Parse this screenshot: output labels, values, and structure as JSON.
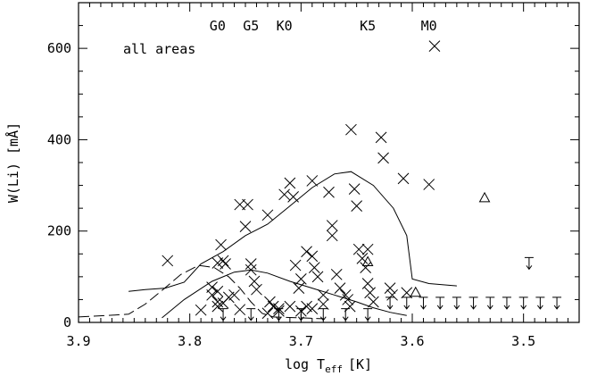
{
  "chart_data": {
    "type": "scatter",
    "title": "",
    "annotation": "all areas",
    "xlabel_main": "log T",
    "xlabel_sub": "eff",
    "xlabel_unit": "[K]",
    "ylabel": "W(Li) [mÅ]",
    "xlim": [
      3.9,
      3.45
    ],
    "ylim": [
      0,
      700
    ],
    "xticks": [
      3.9,
      3.8,
      3.7,
      3.6,
      3.5
    ],
    "xtick_labels": [
      "3.9",
      "3.8",
      "3.7",
      "3.6",
      "3.5"
    ],
    "yticks": [
      0,
      200,
      400,
      600
    ],
    "ytick_labels": [
      "0",
      "200",
      "400",
      "600"
    ],
    "spectral_types": [
      {
        "label": "G0",
        "x": 3.775
      },
      {
        "label": "G5",
        "x": 3.745
      },
      {
        "label": "K0",
        "x": 3.715
      },
      {
        "label": "K5",
        "x": 3.64
      },
      {
        "label": "M0",
        "x": 3.585
      }
    ],
    "detections": [
      [
        3.82,
        135
      ],
      [
        3.79,
        27
      ],
      [
        3.78,
        77
      ],
      [
        3.78,
        60
      ],
      [
        3.775,
        130
      ],
      [
        3.772,
        170
      ],
      [
        3.77,
        135
      ],
      [
        3.768,
        128
      ],
      [
        3.765,
        55
      ],
      [
        3.775,
        68
      ],
      [
        3.775,
        45
      ],
      [
        3.775,
        35
      ],
      [
        3.77,
        42
      ],
      [
        3.755,
        258
      ],
      [
        3.748,
        258
      ],
      [
        3.75,
        210
      ],
      [
        3.745,
        128
      ],
      [
        3.745,
        115
      ],
      [
        3.742,
        90
      ],
      [
        3.74,
        72
      ],
      [
        3.73,
        235
      ],
      [
        3.728,
        45
      ],
      [
        3.725,
        35
      ],
      [
        3.72,
        25
      ],
      [
        3.715,
        280
      ],
      [
        3.71,
        305
      ],
      [
        3.707,
        275
      ],
      [
        3.705,
        125
      ],
      [
        3.702,
        75
      ],
      [
        3.7,
        95
      ],
      [
        3.695,
        155
      ],
      [
        3.695,
        35
      ],
      [
        3.69,
        310
      ],
      [
        3.69,
        145
      ],
      [
        3.688,
        120
      ],
      [
        3.685,
        100
      ],
      [
        3.68,
        60
      ],
      [
        3.68,
        40
      ],
      [
        3.675,
        285
      ],
      [
        3.672,
        212
      ],
      [
        3.672,
        190
      ],
      [
        3.668,
        105
      ],
      [
        3.665,
        75
      ],
      [
        3.66,
        60
      ],
      [
        3.658,
        50
      ],
      [
        3.656,
        35
      ],
      [
        3.655,
        422
      ],
      [
        3.652,
        292
      ],
      [
        3.65,
        255
      ],
      [
        3.648,
        160
      ],
      [
        3.645,
        140
      ],
      [
        3.642,
        120
      ],
      [
        3.64,
        85
      ],
      [
        3.638,
        65
      ],
      [
        3.635,
        45
      ],
      [
        3.628,
        405
      ],
      [
        3.626,
        360
      ],
      [
        3.62,
        75
      ],
      [
        3.618,
        60
      ],
      [
        3.64,
        160
      ],
      [
        3.608,
        315
      ],
      [
        3.605,
        65
      ],
      [
        3.58,
        605
      ],
      [
        3.585,
        302
      ],
      [
        3.72,
        30
      ],
      [
        3.71,
        35
      ],
      [
        3.7,
        25
      ],
      [
        3.69,
        30
      ],
      [
        3.73,
        20
      ],
      [
        3.76,
        60
      ],
      [
        3.755,
        28
      ]
    ],
    "triangles": [
      [
        3.64,
        132
      ],
      [
        3.597,
        65
      ],
      [
        3.535,
        272
      ]
    ],
    "upper_limits": [
      [
        3.56,
        55
      ],
      [
        3.545,
        55
      ],
      [
        3.53,
        55
      ],
      [
        3.515,
        55
      ],
      [
        3.5,
        55
      ],
      [
        3.485,
        55
      ],
      [
        3.47,
        55
      ],
      [
        3.62,
        55
      ],
      [
        3.605,
        55
      ],
      [
        3.59,
        55
      ],
      [
        3.575,
        55
      ],
      [
        3.495,
        142
      ],
      [
        3.77,
        30
      ],
      [
        3.745,
        30
      ],
      [
        3.72,
        30
      ],
      [
        3.7,
        30
      ],
      [
        3.68,
        30
      ],
      [
        3.66,
        30
      ],
      [
        3.64,
        30
      ]
    ],
    "upper_envelope": [
      [
        3.855,
        68
      ],
      [
        3.84,
        72
      ],
      [
        3.822,
        75
      ],
      [
        3.805,
        88
      ],
      [
        3.79,
        128
      ],
      [
        3.77,
        155
      ],
      [
        3.75,
        190
      ],
      [
        3.73,
        215
      ],
      [
        3.71,
        255
      ],
      [
        3.69,
        295
      ],
      [
        3.67,
        325
      ],
      [
        3.655,
        330
      ],
      [
        3.635,
        300
      ],
      [
        3.617,
        250
      ],
      [
        3.605,
        190
      ],
      [
        3.6,
        95
      ],
      [
        3.585,
        85
      ],
      [
        3.56,
        80
      ]
    ],
    "lower_solid": [
      [
        3.825,
        10
      ],
      [
        3.805,
        50
      ],
      [
        3.78,
        90
      ],
      [
        3.76,
        110
      ],
      [
        3.745,
        115
      ],
      [
        3.73,
        108
      ],
      [
        3.71,
        90
      ],
      [
        3.69,
        75
      ],
      [
        3.67,
        60
      ],
      [
        3.65,
        45
      ],
      [
        3.635,
        32
      ],
      [
        3.62,
        22
      ],
      [
        3.605,
        15
      ]
    ],
    "dashed_track": [
      [
        3.9,
        12
      ],
      [
        3.875,
        15
      ],
      [
        3.855,
        18
      ],
      [
        3.84,
        40
      ],
      [
        3.825,
        70
      ],
      [
        3.808,
        105
      ],
      [
        3.792,
        125
      ],
      [
        3.778,
        120
      ],
      [
        3.765,
        100
      ],
      [
        3.755,
        75
      ],
      [
        3.745,
        45
      ],
      [
        3.735,
        20
      ],
      [
        3.725,
        12
      ],
      [
        3.7,
        10
      ],
      [
        3.68,
        8
      ]
    ]
  }
}
